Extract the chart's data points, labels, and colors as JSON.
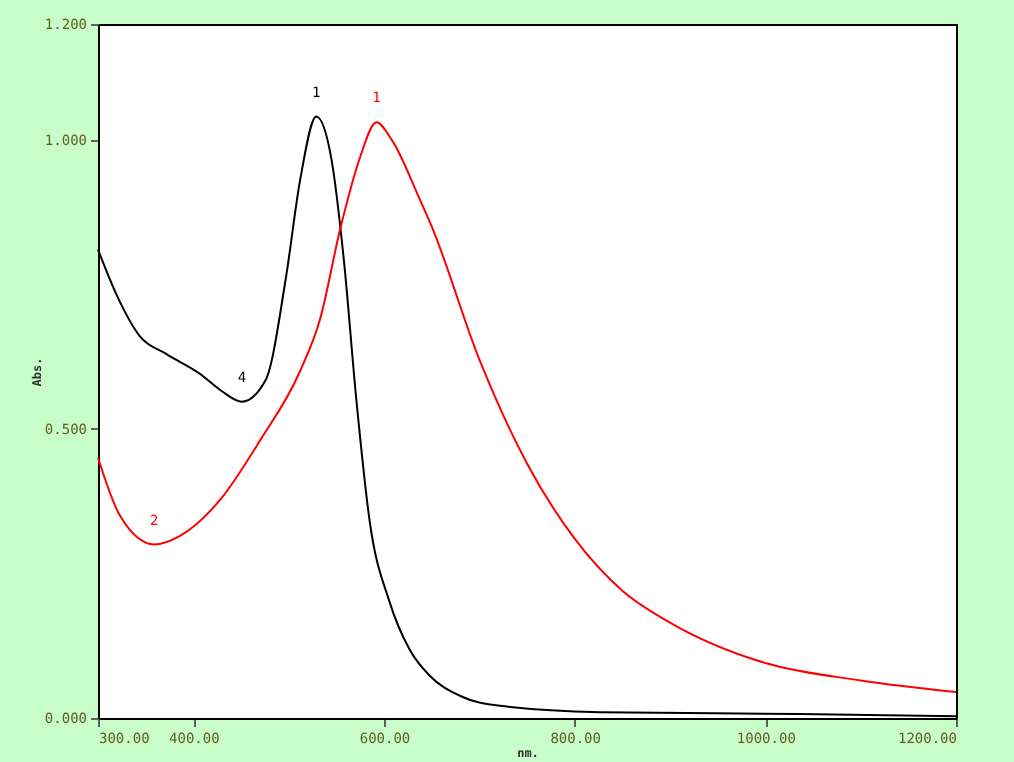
{
  "chart_data": {
    "type": "line",
    "xlabel": "nm.",
    "ylabel": "Abs.",
    "xlim": [
      300,
      1200
    ],
    "ylim": [
      0,
      1.2
    ],
    "xticks": [
      {
        "value": 300,
        "label": "300.00"
      },
      {
        "value": 400,
        "label": "400.00"
      },
      {
        "value": 600,
        "label": "600.00"
      },
      {
        "value": 800,
        "label": "800.00"
      },
      {
        "value": 1000,
        "label": "1000.00"
      },
      {
        "value": 1200,
        "label": "1200.00"
      }
    ],
    "yticks": [
      {
        "value": 0,
        "label": "0.000"
      },
      {
        "value": 0.5,
        "label": "0.500"
      },
      {
        "value": 1.0,
        "label": "1.000"
      },
      {
        "value": 1.2,
        "label": "1.200"
      }
    ],
    "grid": false,
    "marker": "none",
    "line_style": "solid",
    "series": [
      {
        "color": "#000000",
        "x": [
          300,
          320,
          344,
          371,
          407,
          430,
          451,
          476,
          497,
          512,
          529,
          545,
          558,
          571,
          585,
          606,
          627,
          648,
          680,
          722,
          827,
          1036,
          1200
        ],
        "values": [
          0.81,
          0.73,
          0.66,
          0.63,
          0.595,
          0.565,
          0.547,
          0.585,
          0.76,
          0.93,
          1.04,
          0.965,
          0.79,
          0.55,
          0.34,
          0.2,
          0.118,
          0.073,
          0.038,
          0.021,
          0.01,
          0.007,
          0.003
        ]
      },
      {
        "color": "#ff0000",
        "x": [
          300,
          323,
          359,
          386,
          428,
          470,
          512,
          533,
          554,
          575,
          592,
          608,
          638,
          650,
          700,
          750,
          800,
          850,
          900,
          1000,
          1100,
          1200
        ],
        "values": [
          0.45,
          0.35,
          0.3,
          0.315,
          0.377,
          0.48,
          0.6,
          0.69,
          0.845,
          0.97,
          1.03,
          1.0,
          0.895,
          0.85,
          0.62,
          0.44,
          0.31,
          0.22,
          0.165,
          0.095,
          0.065,
          0.045
        ]
      }
    ],
    "annotations": [
      {
        "text": "1",
        "x": 529,
        "y": 1.04
      },
      {
        "text": "4",
        "x": 451,
        "y": 0.547
      },
      {
        "text": "1",
        "x": 592,
        "y": 1.03
      },
      {
        "text": "2",
        "x": 359,
        "y": 0.3
      }
    ]
  }
}
